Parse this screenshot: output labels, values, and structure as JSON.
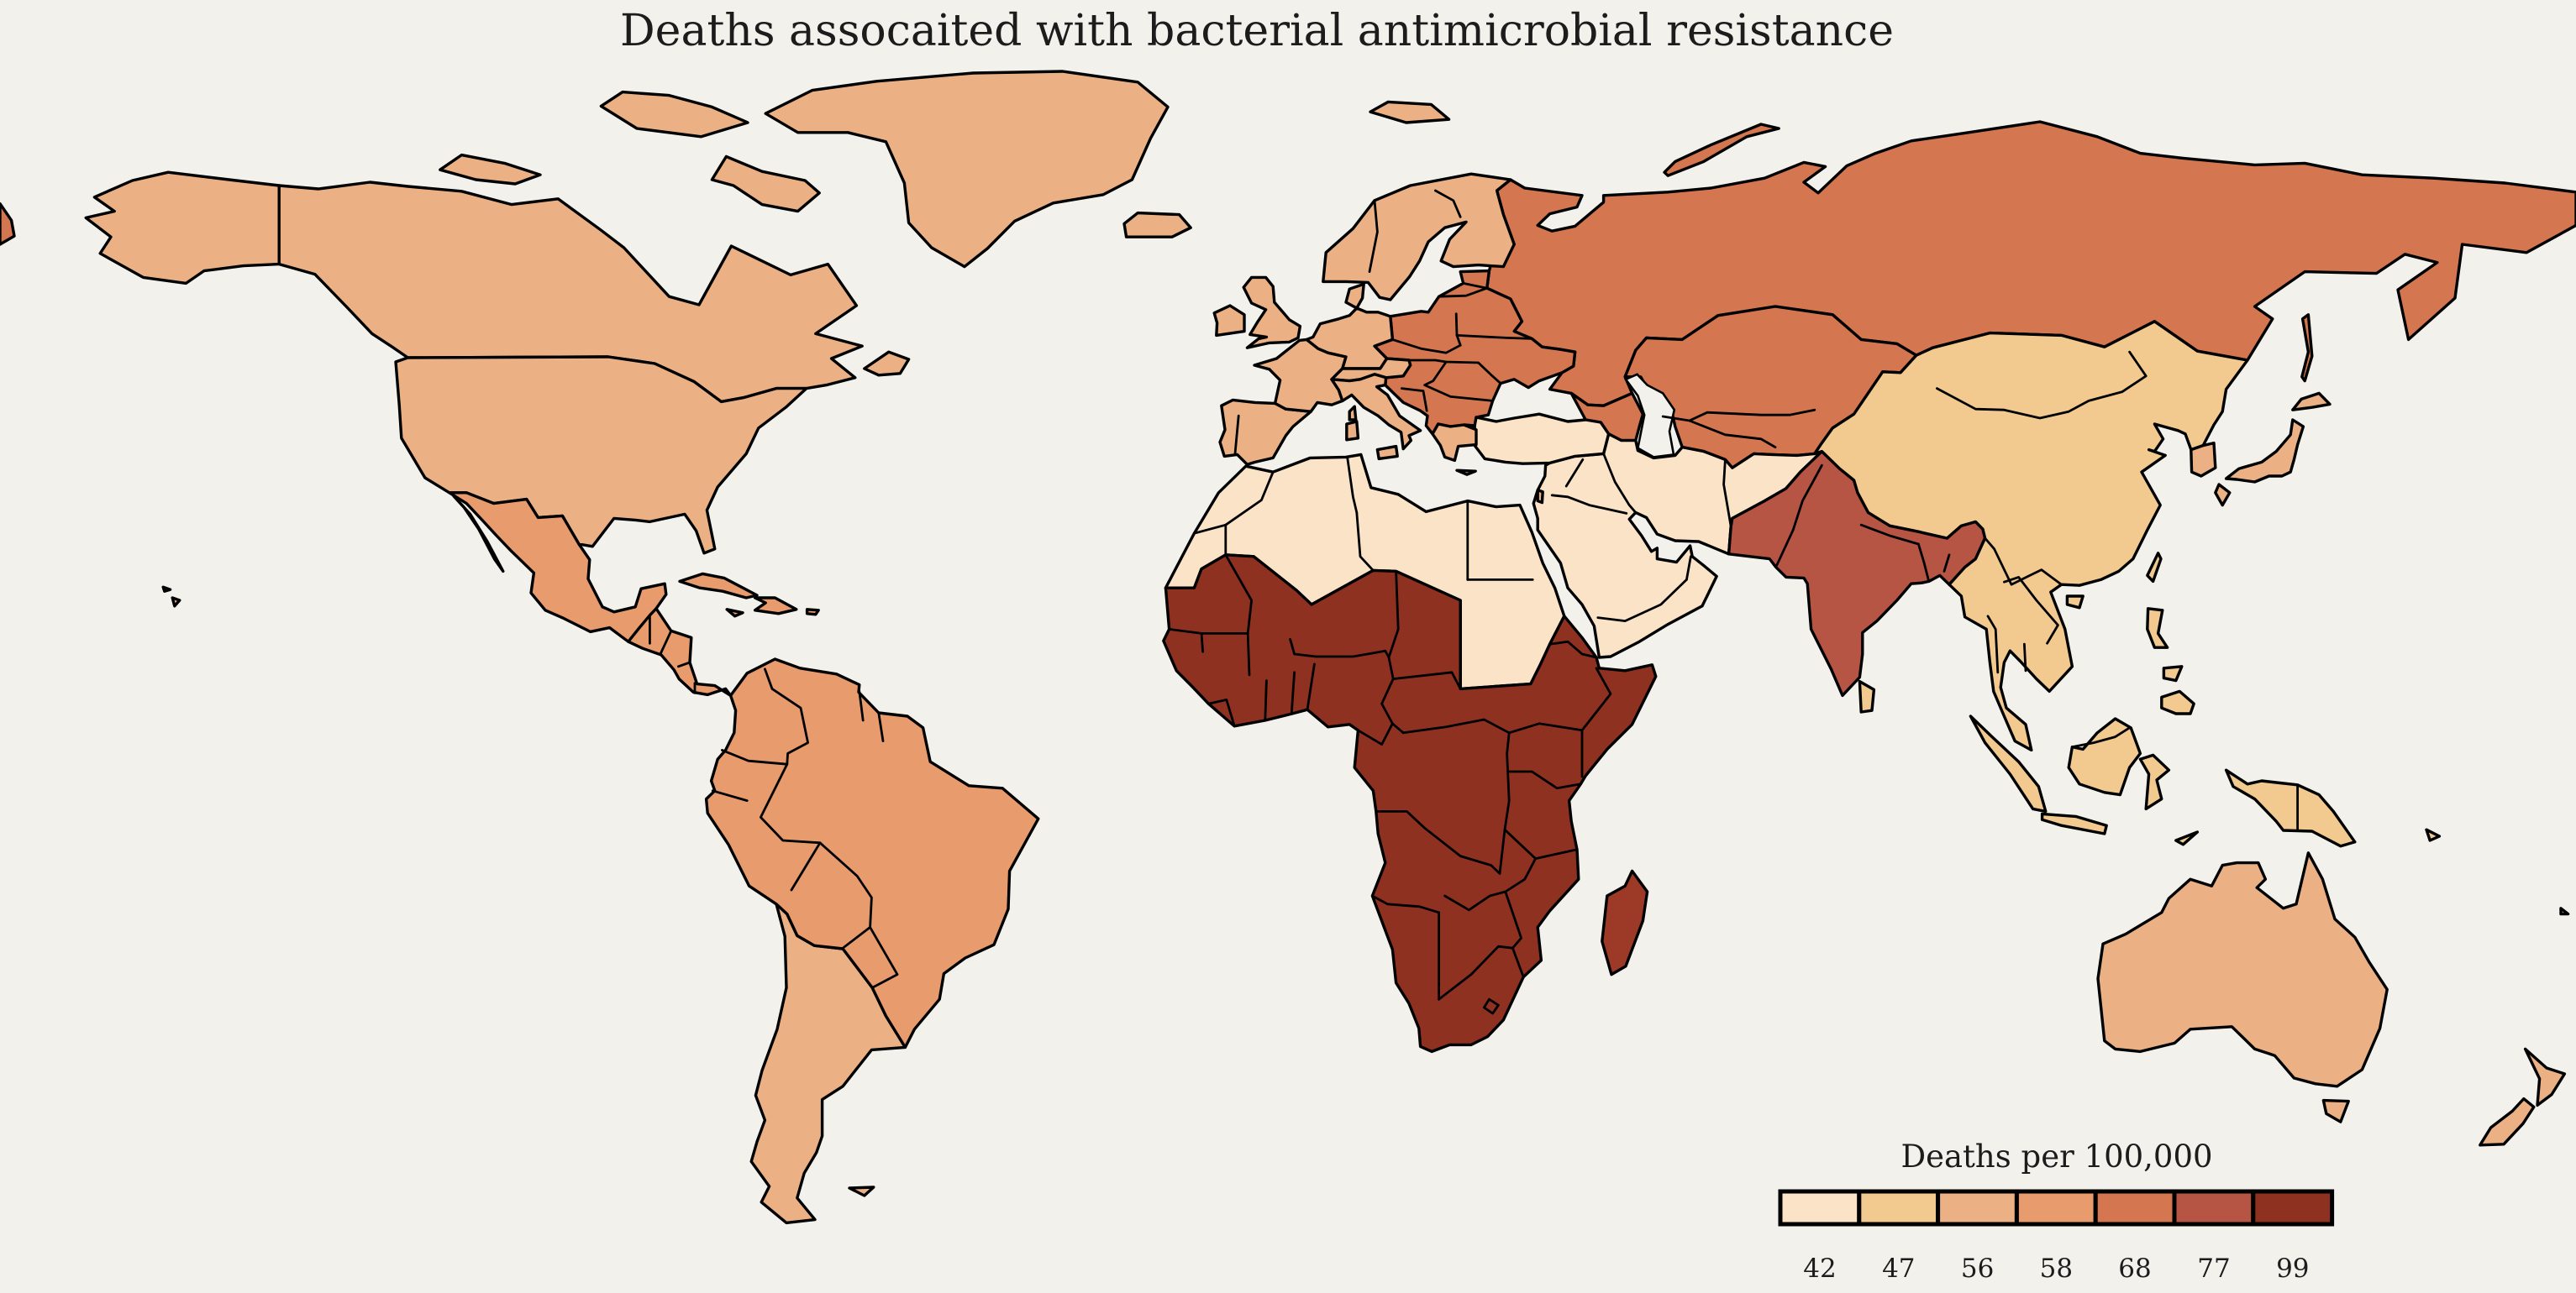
{
  "title": "Deaths assocaited with bacterial antimicrobial resistance",
  "legend": {
    "title": "Deaths per 100,000",
    "labels": [
      "42",
      "47",
      "56",
      "58",
      "68",
      "77",
      "99"
    ],
    "colors": [
      "#fbe3c7",
      "#f2c98f",
      "#ebb185",
      "#e89b6d",
      "#d4764f",
      "#b65544",
      "#8e3120"
    ]
  },
  "map": {
    "background": "#f2f1ec",
    "border_color": "#000000"
  },
  "chart_data": {
    "type": "choropleth_map",
    "title": "Deaths assocaited with bacterial antimicrobial resistance",
    "legend_title": "Deaths per 100,000",
    "legend_position": "bottom-right",
    "bins": [
      42,
      47,
      56,
      58,
      68,
      77,
      99
    ],
    "bin_colors": [
      "#fbe3c7",
      "#f2c98f",
      "#ebb185",
      "#e89b6d",
      "#d4764f",
      "#b65544",
      "#8e3120"
    ],
    "color_overrides": {
      "madagascar": "#9d3a27"
    },
    "regions": [
      {
        "name": "chukotka-sliver",
        "bin": 68
      },
      {
        "name": "russia",
        "bin": 68
      },
      {
        "name": "novaya-zemlya",
        "bin": 68
      },
      {
        "name": "sakhalin",
        "bin": 68
      },
      {
        "name": "central-asia",
        "bin": 68
      },
      {
        "name": "caucasus",
        "bin": 68
      },
      {
        "name": "eastern-europe",
        "bin": 68
      },
      {
        "name": "north-africa",
        "bin": 42
      },
      {
        "name": "middle-east",
        "bin": 42
      },
      {
        "name": "turkey",
        "bin": 42
      },
      {
        "name": "sub-saharan-africa",
        "bin": 99
      },
      {
        "name": "madagascar",
        "bin": 99
      },
      {
        "name": "india-pakistan",
        "bin": 77
      },
      {
        "name": "china-southeast-asia",
        "bin": 47
      },
      {
        "name": "hainan",
        "bin": 47
      },
      {
        "name": "taiwan",
        "bin": 47
      },
      {
        "name": "sri-lanka",
        "bin": 47
      },
      {
        "name": "sumatra",
        "bin": 47
      },
      {
        "name": "java",
        "bin": 47
      },
      {
        "name": "borneo",
        "bin": 47
      },
      {
        "name": "sulawesi",
        "bin": 47
      },
      {
        "name": "new-guinea",
        "bin": 47
      },
      {
        "name": "luzon",
        "bin": 47
      },
      {
        "name": "visayas",
        "bin": 47
      },
      {
        "name": "mindanao",
        "bin": 47
      },
      {
        "name": "timor",
        "bin": 47
      },
      {
        "name": "solomon-islands",
        "bin": 47
      },
      {
        "name": "french-guiana",
        "bin": 47
      },
      {
        "name": "alaska",
        "bin": 56
      },
      {
        "name": "canada",
        "bin": 56
      },
      {
        "name": "usa",
        "bin": 56
      },
      {
        "name": "baffin-island",
        "bin": 56
      },
      {
        "name": "victoria-island",
        "bin": 56
      },
      {
        "name": "ellesmere-island",
        "bin": 56
      },
      {
        "name": "newfoundland",
        "bin": 56
      },
      {
        "name": "greenland",
        "bin": 56
      },
      {
        "name": "iceland",
        "bin": 56
      },
      {
        "name": "svalbard",
        "bin": 56
      },
      {
        "name": "scandinavia",
        "bin": 56
      },
      {
        "name": "denmark",
        "bin": 56
      },
      {
        "name": "uk",
        "bin": 56
      },
      {
        "name": "ireland",
        "bin": 56
      },
      {
        "name": "iberia",
        "bin": 56
      },
      {
        "name": "france",
        "bin": 56
      },
      {
        "name": "germany-benelux",
        "bin": 56
      },
      {
        "name": "alpine",
        "bin": 56
      },
      {
        "name": "italy",
        "bin": 56
      },
      {
        "name": "sicily",
        "bin": 56
      },
      {
        "name": "sardinia",
        "bin": 56
      },
      {
        "name": "corsica",
        "bin": 56
      },
      {
        "name": "greece",
        "bin": 56
      },
      {
        "name": "crete",
        "bin": 56
      },
      {
        "name": "israel",
        "bin": 56
      },
      {
        "name": "japan-hokkaido",
        "bin": 56
      },
      {
        "name": "japan-honshu",
        "bin": 56
      },
      {
        "name": "japan-kyushu",
        "bin": 56
      },
      {
        "name": "south-korea",
        "bin": 56
      },
      {
        "name": "australia",
        "bin": 56
      },
      {
        "name": "tasmania",
        "bin": 56
      },
      {
        "name": "new-zealand-north",
        "bin": 56
      },
      {
        "name": "new-zealand-south",
        "bin": 56
      },
      {
        "name": "hawaii-1",
        "bin": 56
      },
      {
        "name": "hawaii-2",
        "bin": 56
      },
      {
        "name": "fiji",
        "bin": 56
      },
      {
        "name": "falkland-islands",
        "bin": 56
      },
      {
        "name": "southern-cone",
        "bin": 56
      },
      {
        "name": "mexico",
        "bin": 58
      },
      {
        "name": "baja-california",
        "bin": 58
      },
      {
        "name": "central-america",
        "bin": 58
      },
      {
        "name": "cuba",
        "bin": 58
      },
      {
        "name": "hispaniola",
        "bin": 58
      },
      {
        "name": "jamaica",
        "bin": 58
      },
      {
        "name": "puerto-rico",
        "bin": 58
      },
      {
        "name": "south-america",
        "bin": 58
      }
    ],
    "regions_by_bin_readable": {
      "42": [
        "North Africa (Morocco to Sudan, Egypt)",
        "Turkey",
        "Arabian Peninsula",
        "Iraq",
        "Iran",
        "Afghanistan"
      ],
      "47": [
        "China",
        "Mongolia",
        "North Korea",
        "Mainland Southeast Asia",
        "Indonesia",
        "Philippines",
        "Papua New Guinea",
        "Sri Lanka",
        "French Guiana"
      ],
      "56": [
        "United States",
        "Canada",
        "Greenland",
        "Iceland",
        "Western Europe",
        "Scandinavia",
        "Japan",
        "South Korea",
        "Israel",
        "Australia",
        "New Zealand",
        "Argentina",
        "Chile",
        "Uruguay"
      ],
      "58": [
        "Mexico",
        "Central America",
        "Caribbean",
        "Colombia",
        "Venezuela",
        "Ecuador",
        "Peru",
        "Bolivia",
        "Paraguay",
        "Brazil",
        "Guyana",
        "Suriname"
      ],
      "68": [
        "Russia",
        "Eastern Europe",
        "Balkans",
        "Baltic states",
        "Ukraine",
        "Belarus",
        "Kazakhstan",
        "Central Asia",
        "Caucasus"
      ],
      "77": [
        "India",
        "Pakistan",
        "Nepal",
        "Bangladesh"
      ],
      "99": [
        "Sub-Saharan Africa",
        "Madagascar"
      ]
    }
  }
}
